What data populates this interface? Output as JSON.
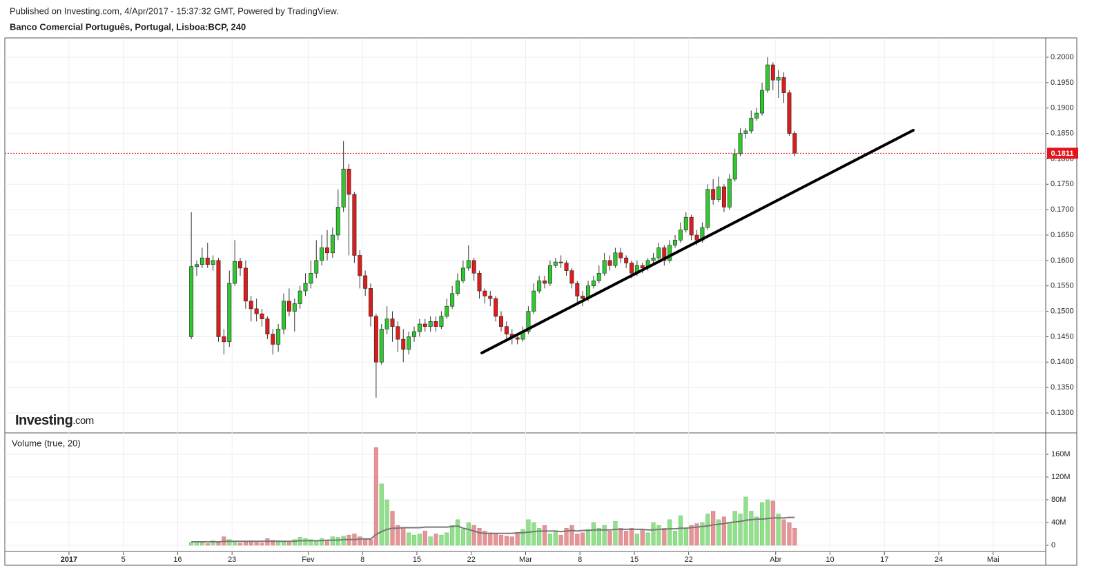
{
  "header": {
    "published": "Published on Investing.com, 4/Apr/2017 - 15:37:32 GMT, Powered by TradingView.",
    "symbol": "Banco Comercial Português, Portugal, Lisboa:BCP, 240"
  },
  "logo": {
    "name": "Investing",
    "suffix": ".com"
  },
  "chart_data": [
    {
      "type": "candlestick",
      "xlim": [
        -5.9,
        89.84
      ],
      "xticks": [
        {
          "value": 0,
          "label": "2017"
        },
        5,
        {
          "value": 10,
          "label": "16"
        },
        {
          "value": 15,
          "label": "23"
        },
        {
          "value": 22,
          "label": "Fev"
        },
        {
          "value": 27,
          "label": "8"
        },
        {
          "value": 32,
          "label": "15"
        },
        {
          "value": 37,
          "label": "22"
        },
        {
          "value": 42,
          "label": "Mar"
        },
        {
          "value": 47,
          "label": "8"
        },
        {
          "value": 52,
          "label": "15"
        },
        {
          "value": 57,
          "label": "22"
        },
        {
          "value": 65,
          "label": "Abr"
        },
        {
          "value": 70,
          "label": "10"
        },
        {
          "value": 75,
          "label": "17"
        },
        {
          "value": 80,
          "label": "24"
        },
        {
          "value": 85,
          "label": "Mai"
        }
      ],
      "ylim": [
        0.1262,
        0.2038
      ],
      "yticks": [
        {
          "value": 0.13,
          "label": "0.1300"
        },
        {
          "value": 0.135,
          "label": "0.1350"
        },
        {
          "value": 0.14,
          "label": "0.1400"
        },
        {
          "value": 0.145,
          "label": "0.1450"
        },
        {
          "value": 0.15,
          "label": "0.1500"
        },
        {
          "value": 0.155,
          "label": "0.1550"
        },
        {
          "value": 0.16,
          "label": "0.1600"
        },
        {
          "value": 0.165,
          "label": "0.1650"
        },
        {
          "value": 0.17,
          "label": "0.1700"
        },
        {
          "value": 0.175,
          "label": "0.1750"
        },
        {
          "value": 0.18,
          "label": "0.1800"
        },
        {
          "value": 0.185,
          "label": "0.1850"
        },
        {
          "value": 0.19,
          "label": "0.1900"
        },
        {
          "value": 0.195,
          "label": "0.1950"
        },
        {
          "value": 0.2,
          "label": "0.2000"
        }
      ],
      "grid": true,
      "up_color": "#2fc82f",
      "down_color": "#dd1c1c",
      "last_price": 0.1811,
      "last_price_color": "#e3131b",
      "x": [
        11.25,
        11.75,
        12.25,
        12.75,
        13.25,
        13.75,
        14.25,
        14.75,
        15.25,
        15.75,
        16.25,
        16.75,
        17.25,
        17.75,
        18.25,
        18.75,
        19.25,
        19.75,
        20.25,
        20.75,
        21.25,
        21.75,
        22.25,
        22.75,
        23.25,
        23.75,
        24.25,
        24.75,
        25.25,
        25.75,
        26.25,
        26.75,
        27.25,
        27.75,
        28.25,
        28.75,
        29.25,
        29.75,
        30.25,
        30.75,
        31.25,
        31.75,
        32.25,
        32.75,
        33.25,
        33.75,
        34.25,
        34.75,
        35.25,
        35.75,
        36.25,
        36.75,
        37.25,
        37.75,
        38.25,
        38.75,
        39.25,
        39.75,
        40.25,
        40.75,
        41.25,
        41.75,
        42.25,
        42.75,
        43.25,
        43.75,
        44.25,
        44.75,
        45.25,
        45.75,
        46.25,
        46.75,
        47.25,
        47.75,
        48.25,
        48.75,
        49.25,
        49.75,
        50.25,
        50.75,
        51.25,
        51.75,
        52.25,
        52.75,
        53.25,
        53.75,
        54.25,
        54.75,
        55.25,
        55.75,
        56.25,
        56.75,
        57.25,
        57.75,
        58.25,
        58.75,
        59.25,
        59.75,
        60.25,
        60.75,
        61.25,
        61.75,
        62.25,
        62.75,
        63.25,
        63.75,
        64.25,
        64.75,
        65.25,
        65.75,
        66.25,
        66.75
      ],
      "open": [
        0.145,
        0.1588,
        0.1592,
        0.1605,
        0.1592,
        0.16,
        0.145,
        0.144,
        0.1555,
        0.1598,
        0.1585,
        0.152,
        0.1505,
        0.1495,
        0.1485,
        0.1455,
        0.1435,
        0.1465,
        0.152,
        0.15,
        0.1515,
        0.154,
        0.1555,
        0.1575,
        0.16,
        0.1625,
        0.1615,
        0.165,
        0.1705,
        0.178,
        0.173,
        0.161,
        0.157,
        0.1545,
        0.149,
        0.14,
        0.1465,
        0.1485,
        0.147,
        0.1445,
        0.1425,
        0.145,
        0.146,
        0.1475,
        0.147,
        0.148,
        0.147,
        0.149,
        0.151,
        0.1535,
        0.156,
        0.1585,
        0.16,
        0.1575,
        0.154,
        0.153,
        0.1525,
        0.149,
        0.147,
        0.1455,
        0.1448,
        0.1445,
        0.146,
        0.15,
        0.154,
        0.156,
        0.1555,
        0.159,
        0.1597,
        0.1595,
        0.158,
        0.1555,
        0.153,
        0.1525,
        0.155,
        0.156,
        0.1575,
        0.16,
        0.159,
        0.1615,
        0.1605,
        0.1595,
        0.1575,
        0.159,
        0.1585,
        0.16,
        0.1605,
        0.1625,
        0.16,
        0.163,
        0.164,
        0.166,
        0.1685,
        0.165,
        0.164,
        0.1665,
        0.174,
        0.172,
        0.1745,
        0.1705,
        0.176,
        0.181,
        0.185,
        0.1855,
        0.188,
        0.189,
        0.1935,
        0.1985,
        0.1955,
        0.196,
        0.193,
        0.185
      ],
      "high": [
        0.1695,
        0.16,
        0.1625,
        0.1635,
        0.161,
        0.1605,
        0.1465,
        0.158,
        0.164,
        0.1605,
        0.16,
        0.153,
        0.1525,
        0.1505,
        0.149,
        0.1465,
        0.1475,
        0.1535,
        0.1545,
        0.1525,
        0.155,
        0.1575,
        0.16,
        0.164,
        0.165,
        0.166,
        0.1665,
        0.174,
        0.1835,
        0.179,
        0.1735,
        0.162,
        0.158,
        0.1555,
        0.1495,
        0.1475,
        0.151,
        0.15,
        0.148,
        0.1465,
        0.146,
        0.147,
        0.1485,
        0.1485,
        0.149,
        0.149,
        0.15,
        0.1525,
        0.155,
        0.1575,
        0.16,
        0.163,
        0.1605,
        0.158,
        0.1545,
        0.154,
        0.153,
        0.15,
        0.148,
        0.1465,
        0.1455,
        0.147,
        0.151,
        0.1555,
        0.157,
        0.157,
        0.16,
        0.1605,
        0.161,
        0.16,
        0.1585,
        0.156,
        0.154,
        0.156,
        0.157,
        0.159,
        0.1615,
        0.161,
        0.1625,
        0.1625,
        0.161,
        0.16,
        0.16,
        0.1595,
        0.1605,
        0.1615,
        0.1635,
        0.163,
        0.164,
        0.165,
        0.1675,
        0.1695,
        0.169,
        0.166,
        0.1675,
        0.175,
        0.176,
        0.1765,
        0.175,
        0.177,
        0.182,
        0.186,
        0.186,
        0.1895,
        0.19,
        0.195,
        0.2,
        0.199,
        0.1975,
        0.197,
        0.1935,
        0.1855
      ],
      "low": [
        0.1445,
        0.157,
        0.1585,
        0.1585,
        0.158,
        0.144,
        0.1415,
        0.143,
        0.155,
        0.157,
        0.1505,
        0.148,
        0.148,
        0.147,
        0.1445,
        0.1415,
        0.142,
        0.1455,
        0.149,
        0.146,
        0.1505,
        0.153,
        0.1545,
        0.1565,
        0.159,
        0.16,
        0.1605,
        0.164,
        0.1695,
        0.161,
        0.1595,
        0.1545,
        0.153,
        0.147,
        0.133,
        0.1395,
        0.1455,
        0.144,
        0.142,
        0.14,
        0.1415,
        0.144,
        0.145,
        0.146,
        0.146,
        0.146,
        0.1465,
        0.1485,
        0.1505,
        0.153,
        0.1555,
        0.158,
        0.156,
        0.1525,
        0.1515,
        0.151,
        0.148,
        0.146,
        0.144,
        0.1435,
        0.1435,
        0.144,
        0.1455,
        0.1495,
        0.1535,
        0.1545,
        0.155,
        0.1585,
        0.1585,
        0.157,
        0.1545,
        0.1515,
        0.151,
        0.152,
        0.1545,
        0.1555,
        0.157,
        0.158,
        0.1585,
        0.1595,
        0.1585,
        0.1565,
        0.157,
        0.1575,
        0.158,
        0.1595,
        0.16,
        0.159,
        0.1595,
        0.1625,
        0.1635,
        0.1655,
        0.164,
        0.163,
        0.1635,
        0.166,
        0.171,
        0.1715,
        0.1695,
        0.17,
        0.1755,
        0.1805,
        0.184,
        0.185,
        0.1875,
        0.1885,
        0.193,
        0.1935,
        0.192,
        0.191,
        0.1845,
        0.1805
      ],
      "close": [
        0.1588,
        0.1592,
        0.1605,
        0.1592,
        0.16,
        0.145,
        0.144,
        0.1555,
        0.1598,
        0.1585,
        0.152,
        0.1505,
        0.1495,
        0.1485,
        0.1455,
        0.1435,
        0.1465,
        0.152,
        0.15,
        0.1515,
        0.154,
        0.1555,
        0.1575,
        0.16,
        0.1625,
        0.1615,
        0.165,
        0.1705,
        0.178,
        0.173,
        0.161,
        0.157,
        0.1545,
        0.149,
        0.14,
        0.1465,
        0.1485,
        0.147,
        0.1445,
        0.1425,
        0.145,
        0.146,
        0.1475,
        0.147,
        0.148,
        0.147,
        0.149,
        0.151,
        0.1535,
        0.156,
        0.1585,
        0.16,
        0.1575,
        0.154,
        0.153,
        0.1525,
        0.149,
        0.147,
        0.1455,
        0.1448,
        0.1445,
        0.146,
        0.15,
        0.154,
        0.156,
        0.1555,
        0.159,
        0.1597,
        0.1595,
        0.158,
        0.1555,
        0.153,
        0.1525,
        0.155,
        0.156,
        0.1575,
        0.16,
        0.159,
        0.1615,
        0.1605,
        0.1595,
        0.1575,
        0.159,
        0.1585,
        0.16,
        0.1605,
        0.1625,
        0.16,
        0.163,
        0.164,
        0.166,
        0.1685,
        0.165,
        0.164,
        0.1665,
        0.174,
        0.172,
        0.1745,
        0.1705,
        0.176,
        0.181,
        0.185,
        0.1855,
        0.188,
        0.189,
        0.1935,
        0.1985,
        0.1955,
        0.196,
        0.193,
        0.185,
        0.1811
      ]
    },
    {
      "type": "volume",
      "title": "Volume (true, 20)",
      "ylim": [
        -10.9,
        196.4
      ],
      "yticks": [
        0,
        {
          "value": 40,
          "label": "40M"
        },
        {
          "value": 80,
          "label": "80M"
        },
        {
          "value": 120,
          "label": "120M"
        },
        {
          "value": 160,
          "label": "160M"
        }
      ],
      "grid": true,
      "up_color": "#92e08c",
      "down_color": "#e59598",
      "ma_color": "#777777",
      "values": [
        5,
        4,
        6,
        3,
        8,
        7,
        15,
        10,
        5,
        4,
        6,
        8,
        5,
        4,
        12,
        9,
        8,
        6,
        5,
        10,
        14,
        12,
        10,
        8,
        12,
        9,
        15,
        14,
        16,
        18,
        20,
        15,
        12,
        10,
        172,
        108,
        80,
        60,
        35,
        30,
        22,
        18,
        20,
        25,
        15,
        20,
        18,
        22,
        35,
        45,
        28,
        40,
        35,
        30,
        25,
        22,
        20,
        18,
        16,
        15,
        22,
        28,
        45,
        40,
        30,
        35,
        20,
        25,
        18,
        30,
        35,
        20,
        22,
        28,
        40,
        30,
        35,
        25,
        42,
        30,
        25,
        30,
        20,
        28,
        22,
        40,
        35,
        30,
        45,
        25,
        52,
        30,
        35,
        38,
        40,
        55,
        60,
        45,
        50,
        40,
        60,
        55,
        85,
        60,
        50,
        75,
        80,
        78,
        55,
        45,
        40,
        30
      ],
      "ma": [
        6,
        6,
        6,
        6,
        6,
        6,
        7,
        7,
        7,
        7,
        7,
        7,
        7,
        7,
        7,
        7,
        7,
        7,
        7,
        7,
        8,
        8,
        8,
        8,
        8,
        9,
        9,
        9,
        10,
        10,
        10,
        11,
        11,
        11,
        19,
        24,
        28,
        30,
        30,
        31,
        31,
        31,
        31,
        32,
        32,
        32,
        32,
        32,
        33,
        34,
        30,
        28,
        25,
        22,
        21,
        21,
        21,
        21,
        21,
        21,
        22,
        22,
        23,
        24,
        25,
        25,
        25,
        25,
        24,
        25,
        26,
        25,
        26,
        26,
        27,
        27,
        27,
        27,
        28,
        28,
        28,
        28,
        28,
        28,
        27,
        27,
        28,
        28,
        29,
        29,
        30,
        30,
        31,
        32,
        33,
        34,
        36,
        37,
        38,
        40,
        41,
        42,
        44,
        45,
        46,
        46,
        47,
        48,
        48,
        48,
        49,
        49
      ]
    }
  ]
}
